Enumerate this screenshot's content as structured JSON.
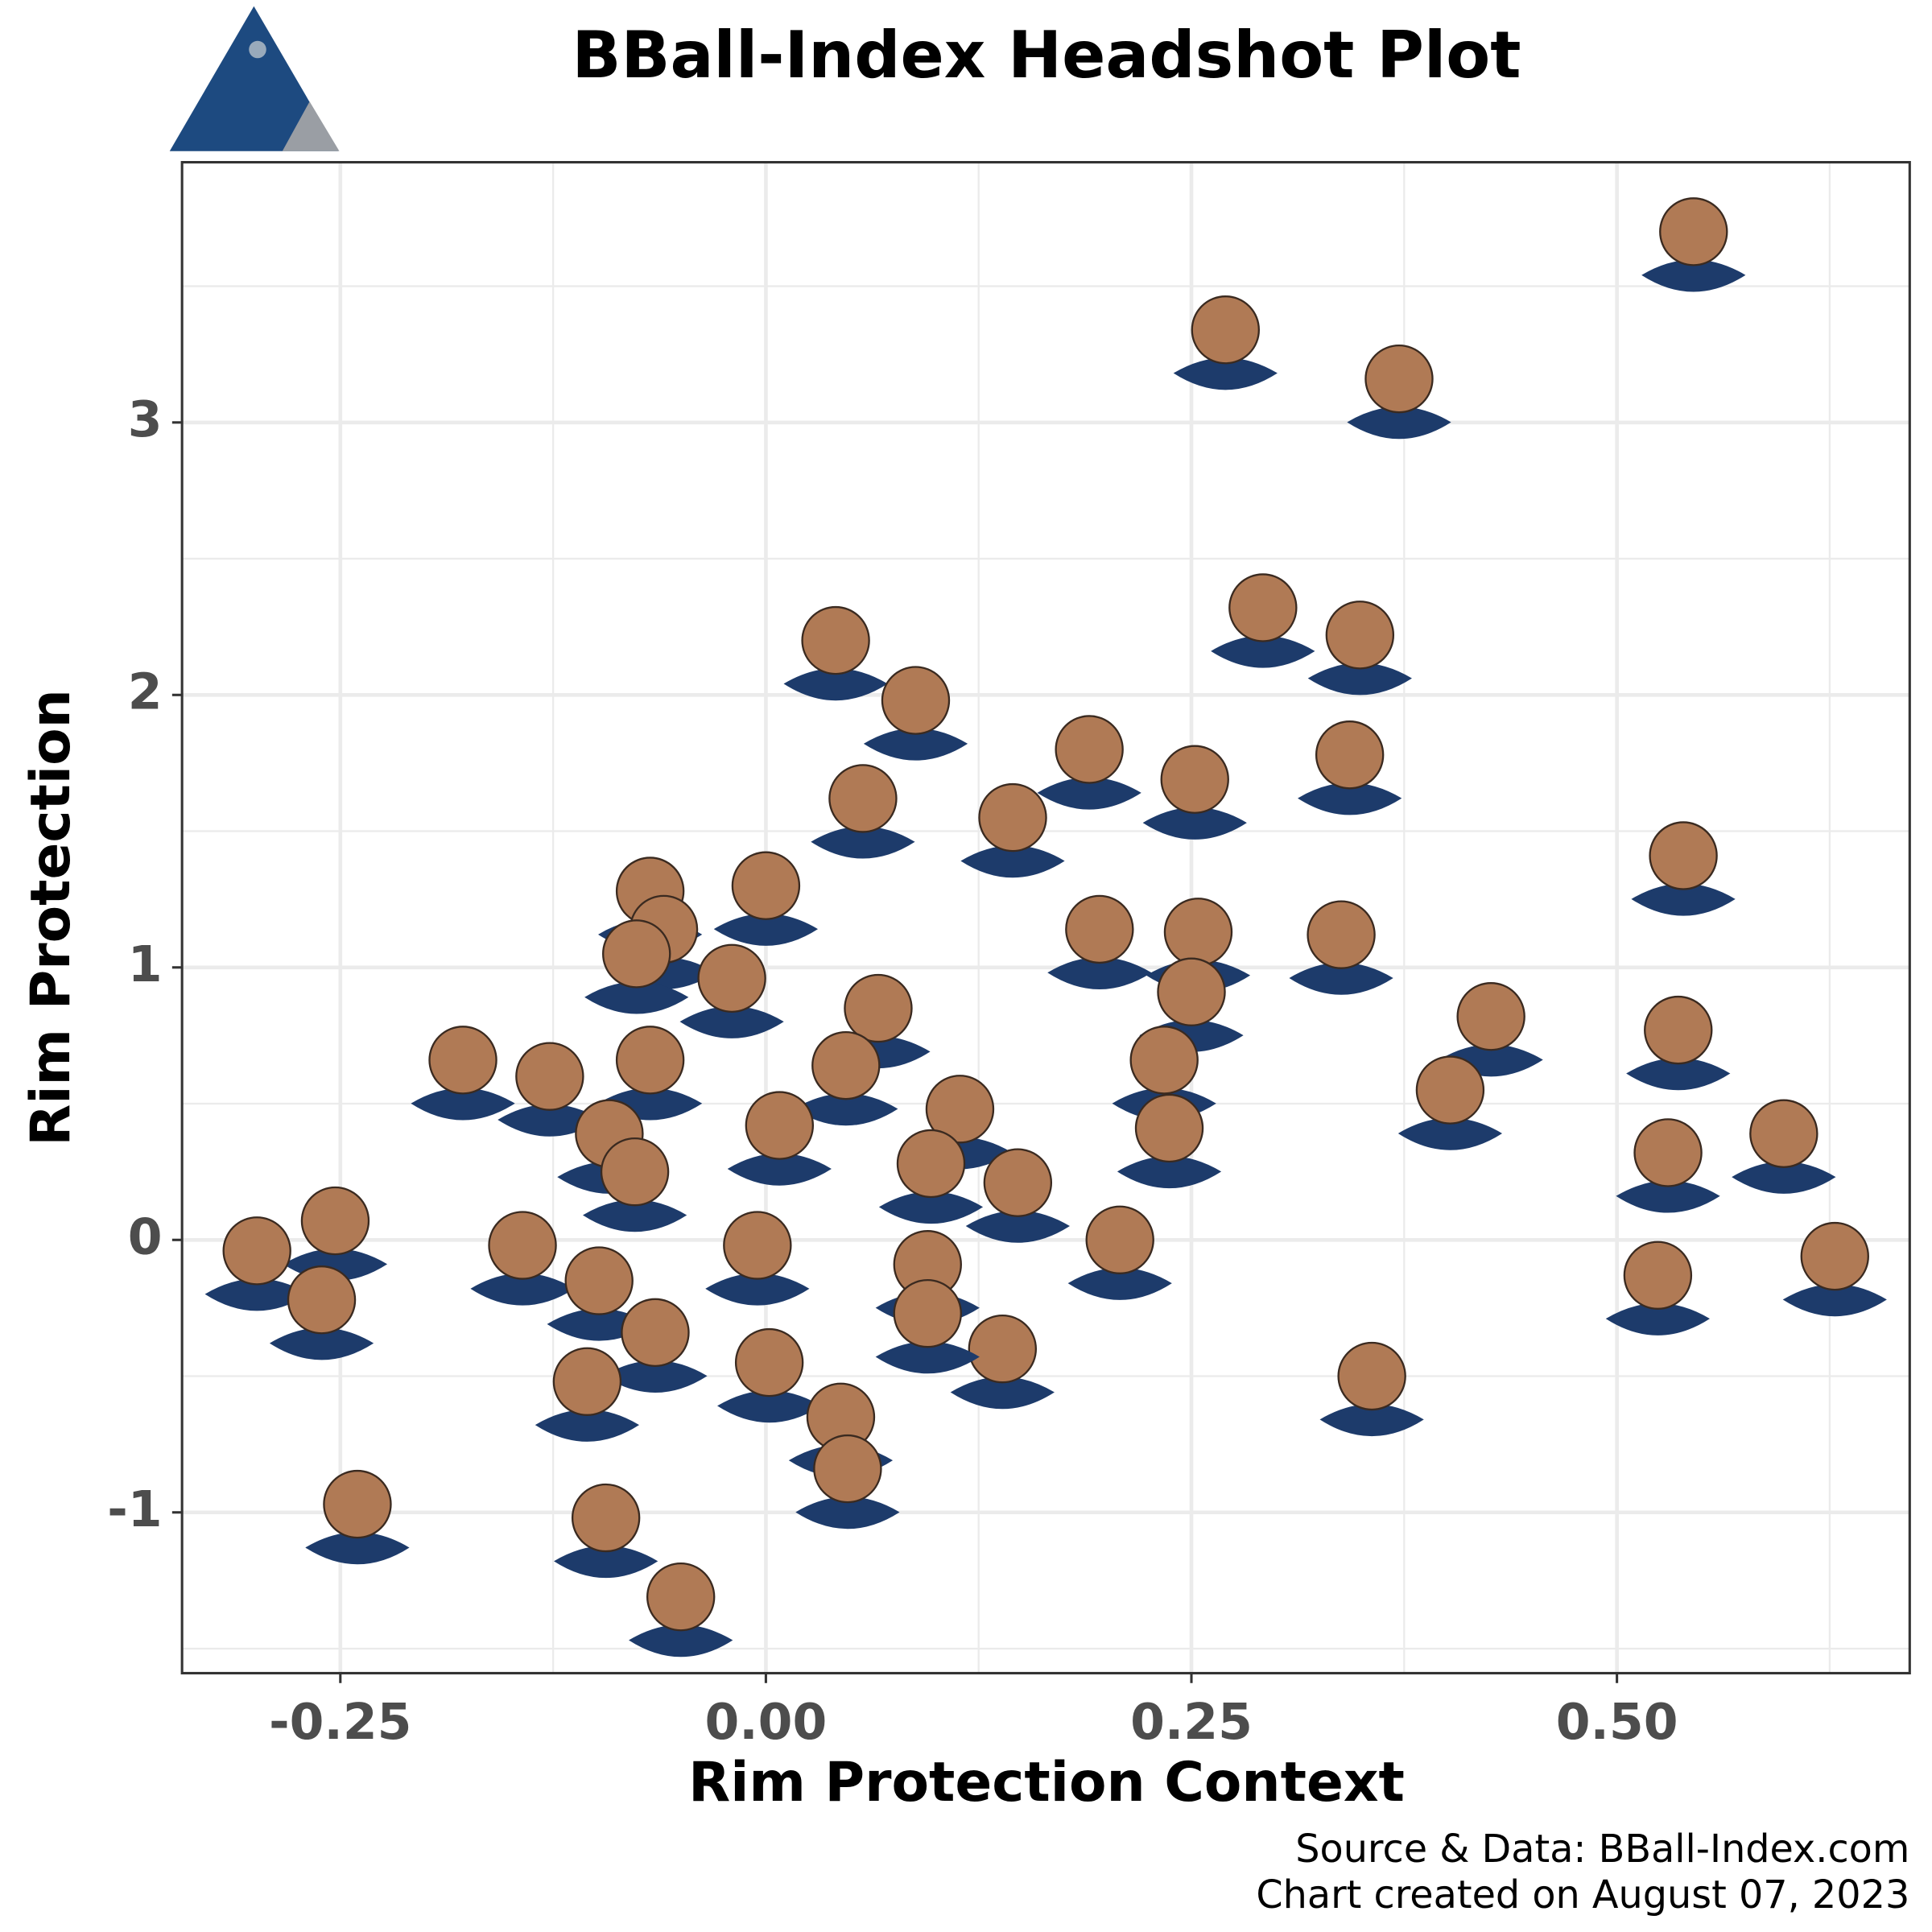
{
  "chart_data": {
    "type": "scatter",
    "title": "BBall-Index Headshot Plot",
    "x_label": "Rim Protection Context",
    "y_label": "Rim Protection",
    "source": "Source & Data: BBall-Index.com",
    "created": "Chart created on August 07, 2023",
    "xlim": [
      -0.343,
      0.672
    ],
    "ylim": [
      -1.59,
      3.955
    ],
    "xticks": [
      {
        "value": -0.25,
        "label": "-0.25"
      },
      {
        "value": 0,
        "label": "0.00"
      },
      {
        "value": 0.25,
        "label": "0.25"
      },
      {
        "value": 0.5,
        "label": "0.50"
      }
    ],
    "yticks": [
      -1,
      0,
      1,
      2,
      3
    ],
    "x_minor_grid": [
      -0.125,
      0.125,
      0.375,
      0.625
    ],
    "y_minor_grid": [
      -1.5,
      -0.5,
      0.5,
      1.5,
      2.5,
      3.5
    ],
    "grid": true,
    "x": [
      0.545,
      0.27,
      0.372,
      0.292,
      0.349,
      0.041,
      0.088,
      0.343,
      0.19,
      0.252,
      0.057,
      0.145,
      0.539,
      0,
      -0.068,
      -0.06,
      0.196,
      0.254,
      0.338,
      -0.076,
      -0.02,
      0.066,
      0.426,
      0.25,
      0.536,
      -0.178,
      -0.127,
      -0.068,
      0.047,
      0.234,
      0.402,
      0.008,
      0.114,
      0.237,
      0.598,
      -0.092,
      -0.077,
      0.097,
      0.148,
      0.53,
      0.208,
      -0.253,
      -0.299,
      -0.143,
      -0.005,
      0.095,
      -0.098,
      0.628,
      0.524,
      -0.261,
      -0.065,
      -0.105,
      0.002,
      0.139,
      0.356,
      0.044,
      0.048,
      0.095,
      -0.24,
      -0.094,
      -0.05
    ],
    "y": [
      3.7,
      3.34,
      3.16,
      2.32,
      2.22,
      2.2,
      1.98,
      1.78,
      1.8,
      1.69,
      1.62,
      1.55,
      1.41,
      1.3,
      1.28,
      1.14,
      1.14,
      1.13,
      1.12,
      1.05,
      0.96,
      0.85,
      0.82,
      0.91,
      0.77,
      0.66,
      0.6,
      0.66,
      0.64,
      0.66,
      0.55,
      0.42,
      0.48,
      0.41,
      0.39,
      0.39,
      0.25,
      0.28,
      0.21,
      0.32,
      0,
      0.07,
      -0.04,
      -0.02,
      -0.02,
      -0.09,
      -0.15,
      -0.06,
      -0.13,
      -0.22,
      -0.34,
      -0.52,
      -0.45,
      -0.4,
      -0.5,
      -0.65,
      -0.84,
      -0.27,
      -0.97,
      -1.02,
      -1.31
    ]
  }
}
